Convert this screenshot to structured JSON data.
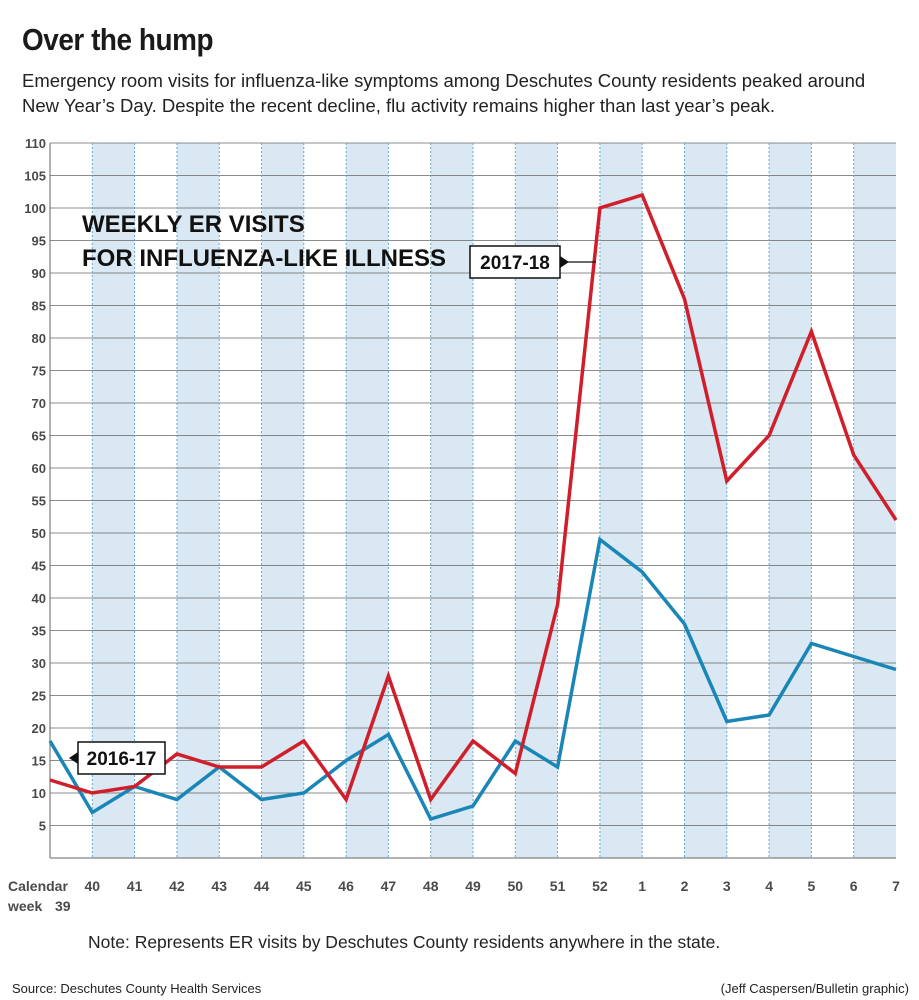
{
  "header": {
    "title": "Over the hump",
    "subtitle": "Emergency room visits for influenza-like symptoms among Deschutes County residents peaked around New Year’s Day. Despite the recent decline, flu activity remains higher than last year’s peak."
  },
  "footer": {
    "note": "Note: Represents ER visits by Deschutes County residents anywhere in the state.",
    "source": "Source: Deschutes County Health Services",
    "credit": "(Jeff Caspersen/Bulletin graphic)"
  },
  "chart_data": {
    "type": "line",
    "heading_lines": [
      "WEEKLY ER VISITS",
      "FOR INFLUENZA-LIKE ILLNESS"
    ],
    "xlabel_lines": [
      "Calendar",
      "week"
    ],
    "categories": [
      "39",
      "40",
      "41",
      "42",
      "43",
      "44",
      "45",
      "46",
      "47",
      "48",
      "49",
      "50",
      "51",
      "52",
      "1",
      "2",
      "3",
      "4",
      "5",
      "6",
      "7"
    ],
    "ylim": [
      0,
      110
    ],
    "yticks": [
      5,
      10,
      15,
      20,
      25,
      30,
      35,
      40,
      45,
      50,
      55,
      60,
      65,
      70,
      75,
      80,
      85,
      90,
      95,
      100,
      105,
      110
    ],
    "grid": true,
    "series": [
      {
        "name": "2017-18",
        "color": "#d01f2b",
        "values": [
          12,
          10,
          11,
          16,
          14,
          14,
          18,
          9,
          28,
          9,
          18,
          13,
          39,
          100,
          102,
          86,
          58,
          65,
          81,
          62,
          52
        ]
      },
      {
        "name": "2016-17",
        "color": "#1a86b8",
        "values": [
          18,
          7,
          11,
          9,
          14,
          9,
          10,
          15,
          19,
          6,
          8,
          18,
          14,
          49,
          44,
          36,
          21,
          22,
          33,
          31,
          29
        ]
      }
    ],
    "colors": {
      "band": "#d9e8f2",
      "grid": "#6aa7cc",
      "hgrid": "#666666"
    }
  }
}
